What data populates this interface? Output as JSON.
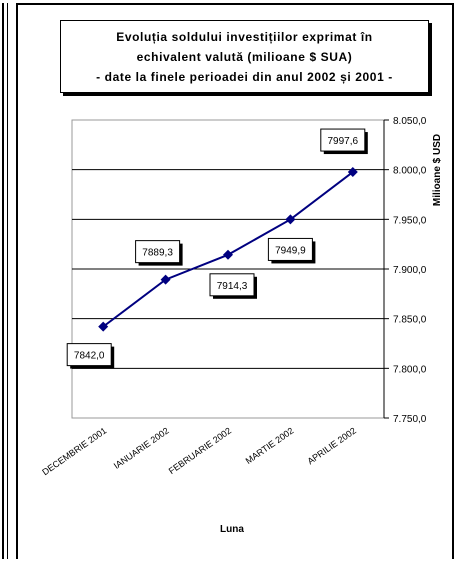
{
  "title_lines": [
    "Evoluția soldului investițiilor exprimat în",
    "echivalent valută (milioane $ SUA)",
    "- date la finele perioadei din anul 2002 și 2001 -"
  ],
  "colors": {
    "line": "#000080",
    "marker": "#000080",
    "grid": "#000000"
  },
  "chart_data": {
    "type": "line",
    "categories": [
      "DECEMBRIE 2001",
      "IANUARIE 2002",
      "FEBRUARIE 2002",
      "MARTIE 2002",
      "APRILIE 2002"
    ],
    "series": [
      {
        "values": [
          7842.0,
          7889.3,
          7914.3,
          7949.9,
          7997.6
        ]
      }
    ],
    "data_labels": [
      "7842,0",
      "7889,3",
      "7914,3",
      "7949,9",
      "7997,6"
    ],
    "xlabel": "Luna",
    "ylabel": "Milioane $ USD",
    "ylim": [
      7750,
      8050
    ],
    "yticks": [
      7750,
      7800,
      7850,
      7900,
      7950,
      8000,
      8050
    ],
    "ytick_labels": [
      "7.750,0",
      "7.800,0",
      "7.850,0",
      "7.900,0",
      "7.950,0",
      "8.000,0",
      "8.050,0"
    ],
    "y_axis_side": "right",
    "grid": true,
    "legend": "none"
  }
}
